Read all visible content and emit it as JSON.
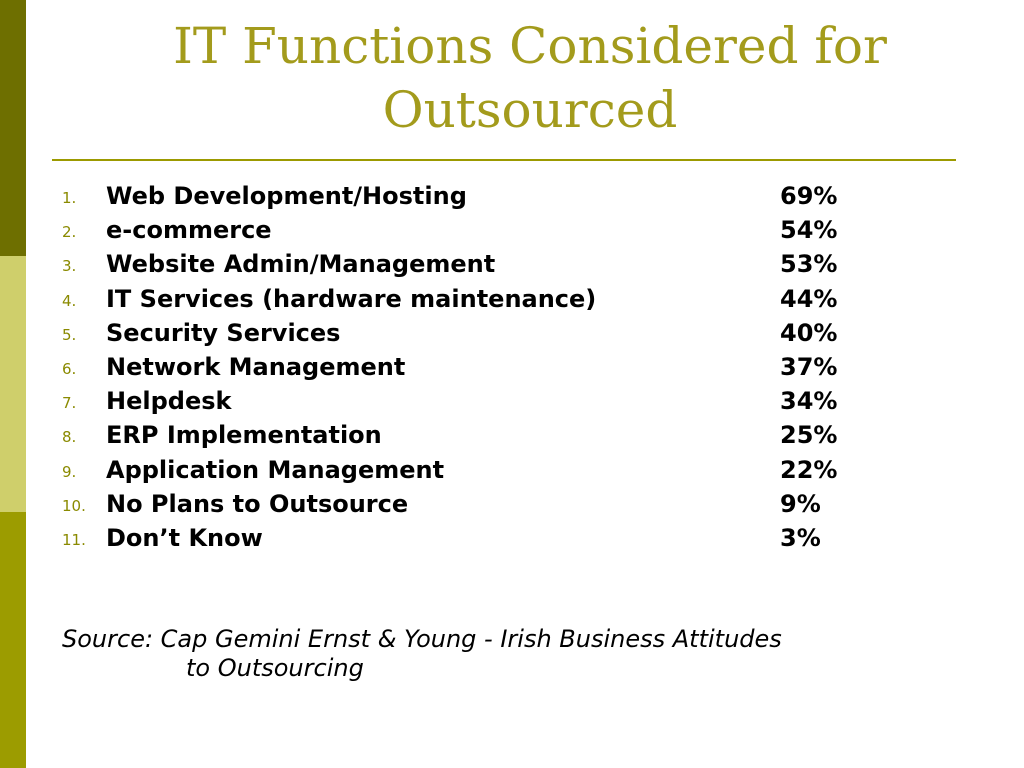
{
  "colors": {
    "title": "#a39b1c",
    "rule": "#9c9a00",
    "number": "#8a8a00",
    "bar_top": "#6e6f00",
    "bar_middle": "#cfcf6b",
    "bar_bottom": "#9c9c00"
  },
  "title_line1": "IT Functions Considered for",
  "title_line2": "Outsourced",
  "items": [
    {
      "number": "1.",
      "label": "Web Development/Hosting",
      "percent": "69%"
    },
    {
      "number": "2.",
      "label": "e-commerce",
      "percent": "54%"
    },
    {
      "number": "3.",
      "label": "Website Admin/Management",
      "percent": "53%"
    },
    {
      "number": "4.",
      "label": "IT Services (hardware maintenance)",
      "percent": "44%"
    },
    {
      "number": "5.",
      "label": "Security Services",
      "percent": "40%"
    },
    {
      "number": "6.",
      "label": "Network Management",
      "percent": "37%"
    },
    {
      "number": "7.",
      "label": "Helpdesk",
      "percent": "34%"
    },
    {
      "number": "8.",
      "label": "ERP Implementation",
      "percent": "25%"
    },
    {
      "number": "9.",
      "label": "Application Management",
      "percent": "22%"
    },
    {
      "number": "10.",
      "label": "No Plans to Outsource",
      "percent": "9%"
    },
    {
      "number": "11.",
      "label": "Don’t Know",
      "percent": "3%"
    }
  ],
  "source_line1": "Source: Cap Gemini Ernst & Young - Irish Business Attitudes",
  "source_line2": "to Outsourcing"
}
